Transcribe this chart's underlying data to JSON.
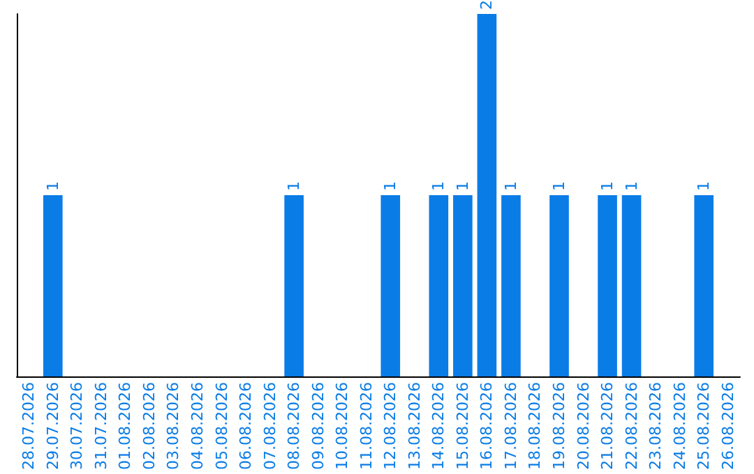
{
  "chart_data": {
    "type": "bar",
    "categories": [
      "28.07.2026",
      "29.07.2026",
      "30.07.2026",
      "31.07.2026",
      "01.08.2026",
      "02.08.2026",
      "03.08.2026",
      "04.08.2026",
      "05.08.2026",
      "06.08.2026",
      "07.08.2026",
      "08.08.2026",
      "09.08.2026",
      "10.08.2026",
      "11.08.2026",
      "12.08.2026",
      "13.08.2026",
      "14.08.2026",
      "15.08.2026",
      "16.08.2026",
      "17.08.2026",
      "18.08.2026",
      "19.08.2026",
      "20.08.2026",
      "21.08.2026",
      "22.08.2026",
      "23.08.2026",
      "24.08.2026",
      "25.08.2026",
      "26.08.2026"
    ],
    "values": [
      0,
      1,
      0,
      0,
      0,
      0,
      0,
      0,
      0,
      0,
      0,
      1,
      0,
      0,
      0,
      1,
      0,
      1,
      1,
      2,
      1,
      0,
      1,
      0,
      1,
      1,
      0,
      0,
      1,
      0
    ],
    "value_labels": [
      null,
      "1",
      null,
      null,
      null,
      null,
      null,
      null,
      null,
      null,
      null,
      "1",
      null,
      null,
      null,
      "1",
      null,
      "1",
      "1",
      "2",
      "1",
      null,
      "1",
      null,
      "1",
      "1",
      null,
      null,
      "1",
      null
    ],
    "color": "#0a7ce6",
    "tick_labels": "x",
    "grid": false
  }
}
